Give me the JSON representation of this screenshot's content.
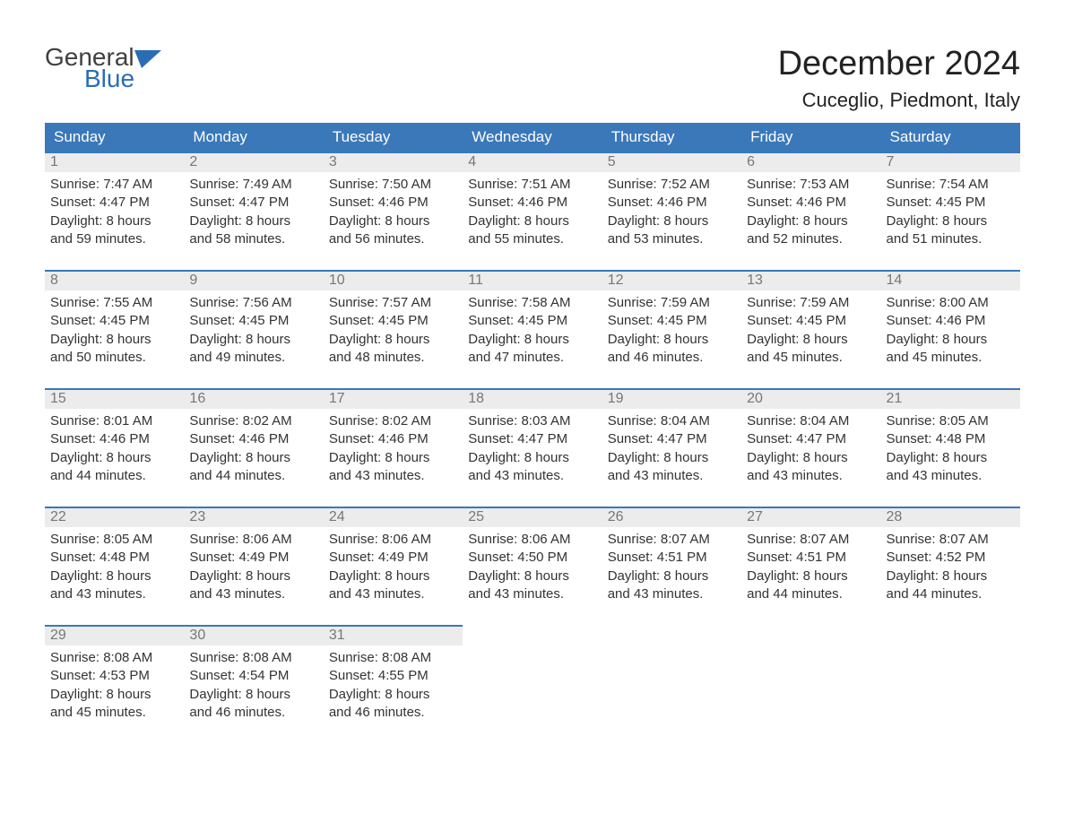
{
  "logo": {
    "general": "General",
    "blue": "Blue",
    "icon_color": "#2a6db5"
  },
  "title": "December 2024",
  "location": "Cuceglio, Piedmont, Italy",
  "colors": {
    "header_bg": "#3a78b9",
    "header_fg": "#ffffff",
    "daynum_bg": "#ececec",
    "daynum_fg": "#777777",
    "body_fg": "#333333",
    "row_border": "#3a78b9"
  },
  "weekdays": [
    "Sunday",
    "Monday",
    "Tuesday",
    "Wednesday",
    "Thursday",
    "Friday",
    "Saturday"
  ],
  "weeks": [
    [
      {
        "n": "1",
        "sunrise": "Sunrise: 7:47 AM",
        "sunset": "Sunset: 4:47 PM",
        "d1": "Daylight: 8 hours",
        "d2": "and 59 minutes."
      },
      {
        "n": "2",
        "sunrise": "Sunrise: 7:49 AM",
        "sunset": "Sunset: 4:47 PM",
        "d1": "Daylight: 8 hours",
        "d2": "and 58 minutes."
      },
      {
        "n": "3",
        "sunrise": "Sunrise: 7:50 AM",
        "sunset": "Sunset: 4:46 PM",
        "d1": "Daylight: 8 hours",
        "d2": "and 56 minutes."
      },
      {
        "n": "4",
        "sunrise": "Sunrise: 7:51 AM",
        "sunset": "Sunset: 4:46 PM",
        "d1": "Daylight: 8 hours",
        "d2": "and 55 minutes."
      },
      {
        "n": "5",
        "sunrise": "Sunrise: 7:52 AM",
        "sunset": "Sunset: 4:46 PM",
        "d1": "Daylight: 8 hours",
        "d2": "and 53 minutes."
      },
      {
        "n": "6",
        "sunrise": "Sunrise: 7:53 AM",
        "sunset": "Sunset: 4:46 PM",
        "d1": "Daylight: 8 hours",
        "d2": "and 52 minutes."
      },
      {
        "n": "7",
        "sunrise": "Sunrise: 7:54 AM",
        "sunset": "Sunset: 4:45 PM",
        "d1": "Daylight: 8 hours",
        "d2": "and 51 minutes."
      }
    ],
    [
      {
        "n": "8",
        "sunrise": "Sunrise: 7:55 AM",
        "sunset": "Sunset: 4:45 PM",
        "d1": "Daylight: 8 hours",
        "d2": "and 50 minutes."
      },
      {
        "n": "9",
        "sunrise": "Sunrise: 7:56 AM",
        "sunset": "Sunset: 4:45 PM",
        "d1": "Daylight: 8 hours",
        "d2": "and 49 minutes."
      },
      {
        "n": "10",
        "sunrise": "Sunrise: 7:57 AM",
        "sunset": "Sunset: 4:45 PM",
        "d1": "Daylight: 8 hours",
        "d2": "and 48 minutes."
      },
      {
        "n": "11",
        "sunrise": "Sunrise: 7:58 AM",
        "sunset": "Sunset: 4:45 PM",
        "d1": "Daylight: 8 hours",
        "d2": "and 47 minutes."
      },
      {
        "n": "12",
        "sunrise": "Sunrise: 7:59 AM",
        "sunset": "Sunset: 4:45 PM",
        "d1": "Daylight: 8 hours",
        "d2": "and 46 minutes."
      },
      {
        "n": "13",
        "sunrise": "Sunrise: 7:59 AM",
        "sunset": "Sunset: 4:45 PM",
        "d1": "Daylight: 8 hours",
        "d2": "and 45 minutes."
      },
      {
        "n": "14",
        "sunrise": "Sunrise: 8:00 AM",
        "sunset": "Sunset: 4:46 PM",
        "d1": "Daylight: 8 hours",
        "d2": "and 45 minutes."
      }
    ],
    [
      {
        "n": "15",
        "sunrise": "Sunrise: 8:01 AM",
        "sunset": "Sunset: 4:46 PM",
        "d1": "Daylight: 8 hours",
        "d2": "and 44 minutes."
      },
      {
        "n": "16",
        "sunrise": "Sunrise: 8:02 AM",
        "sunset": "Sunset: 4:46 PM",
        "d1": "Daylight: 8 hours",
        "d2": "and 44 minutes."
      },
      {
        "n": "17",
        "sunrise": "Sunrise: 8:02 AM",
        "sunset": "Sunset: 4:46 PM",
        "d1": "Daylight: 8 hours",
        "d2": "and 43 minutes."
      },
      {
        "n": "18",
        "sunrise": "Sunrise: 8:03 AM",
        "sunset": "Sunset: 4:47 PM",
        "d1": "Daylight: 8 hours",
        "d2": "and 43 minutes."
      },
      {
        "n": "19",
        "sunrise": "Sunrise: 8:04 AM",
        "sunset": "Sunset: 4:47 PM",
        "d1": "Daylight: 8 hours",
        "d2": "and 43 minutes."
      },
      {
        "n": "20",
        "sunrise": "Sunrise: 8:04 AM",
        "sunset": "Sunset: 4:47 PM",
        "d1": "Daylight: 8 hours",
        "d2": "and 43 minutes."
      },
      {
        "n": "21",
        "sunrise": "Sunrise: 8:05 AM",
        "sunset": "Sunset: 4:48 PM",
        "d1": "Daylight: 8 hours",
        "d2": "and 43 minutes."
      }
    ],
    [
      {
        "n": "22",
        "sunrise": "Sunrise: 8:05 AM",
        "sunset": "Sunset: 4:48 PM",
        "d1": "Daylight: 8 hours",
        "d2": "and 43 minutes."
      },
      {
        "n": "23",
        "sunrise": "Sunrise: 8:06 AM",
        "sunset": "Sunset: 4:49 PM",
        "d1": "Daylight: 8 hours",
        "d2": "and 43 minutes."
      },
      {
        "n": "24",
        "sunrise": "Sunrise: 8:06 AM",
        "sunset": "Sunset: 4:49 PM",
        "d1": "Daylight: 8 hours",
        "d2": "and 43 minutes."
      },
      {
        "n": "25",
        "sunrise": "Sunrise: 8:06 AM",
        "sunset": "Sunset: 4:50 PM",
        "d1": "Daylight: 8 hours",
        "d2": "and 43 minutes."
      },
      {
        "n": "26",
        "sunrise": "Sunrise: 8:07 AM",
        "sunset": "Sunset: 4:51 PM",
        "d1": "Daylight: 8 hours",
        "d2": "and 43 minutes."
      },
      {
        "n": "27",
        "sunrise": "Sunrise: 8:07 AM",
        "sunset": "Sunset: 4:51 PM",
        "d1": "Daylight: 8 hours",
        "d2": "and 44 minutes."
      },
      {
        "n": "28",
        "sunrise": "Sunrise: 8:07 AM",
        "sunset": "Sunset: 4:52 PM",
        "d1": "Daylight: 8 hours",
        "d2": "and 44 minutes."
      }
    ],
    [
      {
        "n": "29",
        "sunrise": "Sunrise: 8:08 AM",
        "sunset": "Sunset: 4:53 PM",
        "d1": "Daylight: 8 hours",
        "d2": "and 45 minutes."
      },
      {
        "n": "30",
        "sunrise": "Sunrise: 8:08 AM",
        "sunset": "Sunset: 4:54 PM",
        "d1": "Daylight: 8 hours",
        "d2": "and 46 minutes."
      },
      {
        "n": "31",
        "sunrise": "Sunrise: 8:08 AM",
        "sunset": "Sunset: 4:55 PM",
        "d1": "Daylight: 8 hours",
        "d2": "and 46 minutes."
      },
      null,
      null,
      null,
      null
    ]
  ]
}
